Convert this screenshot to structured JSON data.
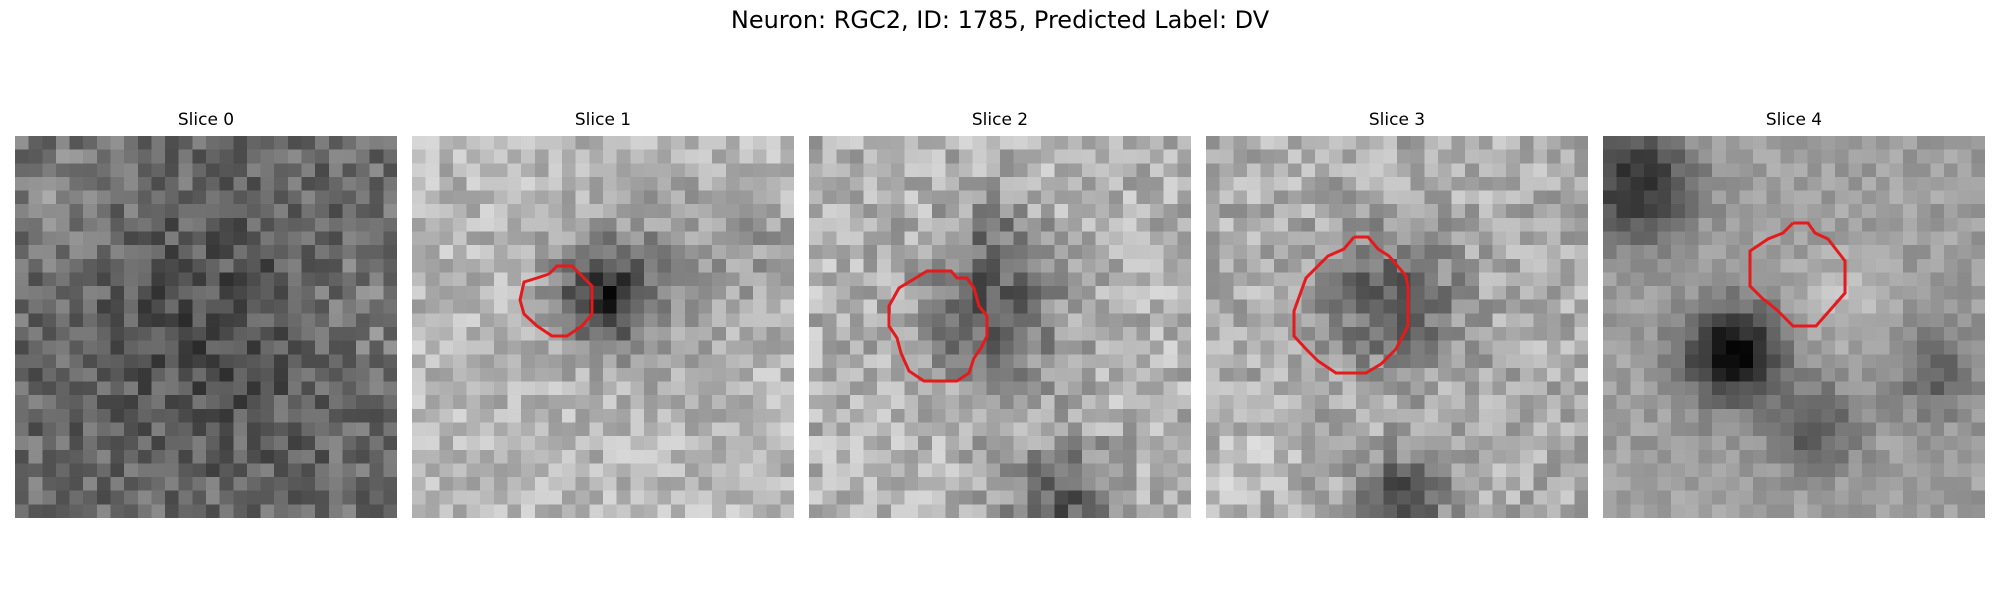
{
  "figure": {
    "title": "Neuron: RGC2, ID: 1785, Predicted Label: DV"
  },
  "panels": [
    {
      "title": "Slice 0",
      "has_contour": false
    },
    {
      "title": "Slice 1",
      "has_contour": true
    },
    {
      "title": "Slice 2",
      "has_contour": true
    },
    {
      "title": "Slice 3",
      "has_contour": true
    },
    {
      "title": "Slice 4",
      "has_contour": true
    }
  ],
  "colors": {
    "contour": "#e41a1c",
    "background": "#ffffff"
  }
}
